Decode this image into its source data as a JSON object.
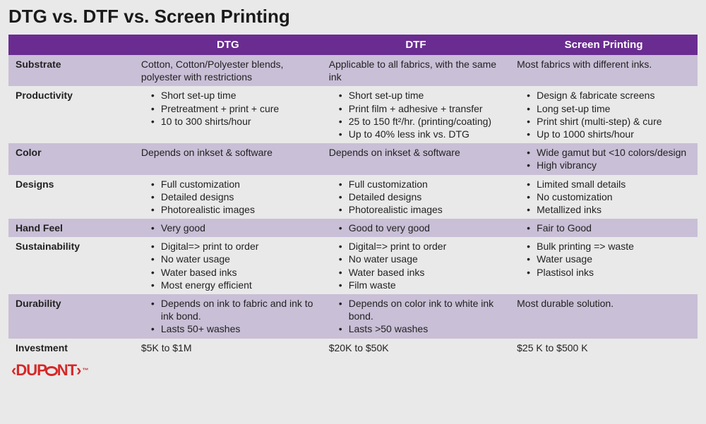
{
  "title": "DTG vs. DTF vs. Screen Printing",
  "colors": {
    "header_bg": "#6a2c91",
    "header_fg": "#ffffff",
    "shade_bg": "#c9bfd6",
    "light_bg": "#e9e9e9",
    "logo_color": "#d62828"
  },
  "columns": [
    "",
    "DTG",
    "DTF",
    "Screen Printing"
  ],
  "rows": [
    {
      "label": "Substrate",
      "shade": true,
      "cells": [
        {
          "text": "Cotton, Cotton/Polyester blends, polyester with restrictions"
        },
        {
          "text": "Applicable to all fabrics, with the same ink"
        },
        {
          "text": "Most fabrics with different inks."
        }
      ]
    },
    {
      "label": "Productivity",
      "shade": false,
      "cells": [
        {
          "bullets": [
            "Short set-up time",
            "Pretreatment + print + cure",
            "10 to 300 shirts/hour"
          ]
        },
        {
          "bullets": [
            "Short set-up time",
            "Print film + adhesive + transfer",
            "25 to 150 ft²/hr. (printing/coating)",
            "Up to 40% less ink vs. DTG"
          ]
        },
        {
          "bullets": [
            "Design & fabricate screens",
            "Long set-up time",
            "Print shirt (multi-step) & cure",
            "Up to 1000 shirts/hour"
          ]
        }
      ]
    },
    {
      "label": "Color",
      "shade": true,
      "cells": [
        {
          "text": "Depends on inkset & software"
        },
        {
          "text": "Depends on inkset & software"
        },
        {
          "bullets": [
            "Wide gamut but <10 colors/design",
            "High vibrancy"
          ]
        }
      ]
    },
    {
      "label": "Designs",
      "shade": false,
      "cells": [
        {
          "bullets": [
            "Full customization",
            "Detailed designs",
            "Photorealistic images"
          ]
        },
        {
          "bullets": [
            "Full customization",
            "Detailed designs",
            "Photorealistic images"
          ]
        },
        {
          "bullets": [
            "Limited small details",
            "No customization",
            "Metallized inks"
          ]
        }
      ]
    },
    {
      "label": "Hand Feel",
      "shade": true,
      "cells": [
        {
          "bullets": [
            "Very good"
          ]
        },
        {
          "bullets": [
            "Good to very good"
          ]
        },
        {
          "bullets": [
            "Fair to Good"
          ]
        }
      ]
    },
    {
      "label": "Sustainability",
      "shade": false,
      "cells": [
        {
          "bullets": [
            "Digital=> print to order",
            "No water usage",
            "Water based inks",
            "Most energy efficient"
          ]
        },
        {
          "bullets": [
            "Digital=> print to order",
            "No water usage",
            "Water based inks",
            "Film waste"
          ]
        },
        {
          "bullets": [
            "Bulk printing => waste",
            "Water usage",
            "Plastisol inks"
          ]
        }
      ]
    },
    {
      "label": "Durability",
      "shade": true,
      "cells": [
        {
          "bullets": [
            "Depends on ink to fabric and ink to ink bond.",
            "Lasts 50+ washes"
          ]
        },
        {
          "bullets": [
            "Depends on color ink to white ink bond.",
            "Lasts >50 washes"
          ]
        },
        {
          "text": "Most durable solution."
        }
      ]
    },
    {
      "label": "Investment",
      "shade": false,
      "cells": [
        {
          "text": "$5K to $1M"
        },
        {
          "text": "$20K to $50K"
        },
        {
          "text": "$25 K to $500 K"
        }
      ]
    }
  ],
  "logo": {
    "brand": "DUPONT",
    "tm": "™"
  }
}
